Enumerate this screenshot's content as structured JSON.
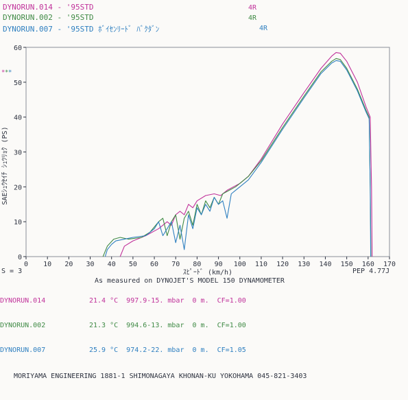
{
  "legend": [
    {
      "name": "DYNORUN.014 - '95STD",
      "gear": "4R",
      "color": "#c0319a"
    },
    {
      "name": "DYNORUN.002 - '95STD",
      "gear": "4R",
      "color": "#3f8a45"
    },
    {
      "name": "DYNORUN.007 - '95STD ﾎﾞｲｾﾝﾘｰﾄﾞ ﾊﾞｸﾀﾞﾝ",
      "gear": "4R",
      "color": "#2e7fc0"
    }
  ],
  "chart_data": {
    "type": "line",
    "xlabel": "ｽﾋﾟｰﾄﾞ (km/h)",
    "ylabel": "SAEｼｭｳｾｲﾁ ｼｭﾂﾘｮｸ (PS)",
    "xlim": [
      0,
      170
    ],
    "ylim": [
      0,
      60
    ],
    "xticks": [
      0,
      10,
      20,
      30,
      40,
      50,
      60,
      70,
      80,
      90,
      100,
      110,
      120,
      130,
      140,
      150,
      160,
      170
    ],
    "yticks": [
      0,
      10,
      20,
      30,
      40,
      50,
      60
    ],
    "grid": false,
    "legend_markers": [
      "*",
      "*",
      "*"
    ],
    "series": [
      {
        "name": "DYNORUN.014",
        "color": "#c0319a",
        "x": [
          44,
          46,
          50,
          56,
          62,
          66,
          68,
          70,
          72,
          74,
          76,
          78,
          80,
          84,
          88,
          91,
          94,
          97,
          100,
          104,
          110,
          120,
          130,
          138,
          143,
          145,
          147,
          150,
          155,
          159,
          161,
          161.6,
          161.9
        ],
        "y": [
          0,
          3,
          4.5,
          6,
          8,
          10,
          9,
          12,
          13,
          12,
          15,
          14,
          16,
          17.5,
          18,
          17.5,
          19,
          20,
          21,
          23,
          28,
          38,
          47,
          54,
          57.5,
          58.5,
          58.3,
          56,
          50,
          43,
          40,
          20,
          0
        ]
      },
      {
        "name": "DYNORUN.002",
        "color": "#3f8a45",
        "x": [
          36,
          38,
          41,
          44,
          48,
          54,
          58,
          62,
          64,
          66,
          68,
          70,
          72,
          74,
          76,
          78,
          80,
          82,
          84,
          86,
          88,
          90,
          92,
          95,
          98,
          100,
          104,
          110,
          120,
          130,
          138,
          143,
          145,
          147,
          150,
          155,
          159,
          160.5,
          161,
          161.3
        ],
        "y": [
          0,
          3,
          5,
          5.5,
          5,
          5.5,
          7,
          10,
          11,
          6,
          10,
          12,
          5,
          11,
          13,
          9,
          15,
          12,
          16,
          14,
          17,
          15,
          18,
          19,
          20,
          21,
          23,
          27.5,
          37,
          46,
          53,
          56,
          56.8,
          56.5,
          54,
          48,
          42,
          40,
          20,
          0
        ]
      },
      {
        "name": "DYNORUN.007",
        "color": "#2e7fc0",
        "x": [
          37,
          38,
          40,
          42,
          46,
          50,
          56,
          60,
          62,
          64,
          66,
          68,
          70,
          72,
          74,
          76,
          78,
          80,
          82,
          84,
          86,
          88,
          90,
          92,
          94,
          96,
          98,
          100,
          104,
          110,
          120,
          130,
          138,
          143,
          145,
          147,
          150,
          155,
          159,
          160.5,
          161,
          161.2
        ],
        "y": [
          0,
          2,
          3.5,
          4.5,
          5,
          5.5,
          6,
          8,
          10,
          6,
          8,
          10,
          4,
          9,
          2,
          12,
          8,
          14,
          12,
          15,
          13,
          17,
          15,
          16,
          11,
          18,
          19,
          20,
          22,
          27,
          36.5,
          45.5,
          52.5,
          55.5,
          56.2,
          56,
          53.5,
          47.5,
          41.5,
          39.5,
          20,
          0
        ]
      }
    ]
  },
  "footer_left": "S = 3",
  "footer_right": "PEP 4.77J",
  "caption": "As measured on DYNOJET'S MODEL 150 DYNAMOMETER",
  "runs": [
    {
      "name": "DYNORUN.014",
      "details": "21.4 °C  997.9-15. mbar  0 m.  CF=1.00",
      "color": "#c0319a"
    },
    {
      "name": "DYNORUN.002",
      "details": "21.3 °C  994.6-13. mbar  0 m.  CF=1.00",
      "color": "#3f8a45"
    },
    {
      "name": "DYNORUN.007",
      "details": "25.9 °C  974.2-22. mbar  0 m.  CF=1.05",
      "color": "#2e7fc0"
    }
  ],
  "address": "MORIYAMA ENGINEERING 1881-1 SHIMONAGAYA KHONAN-KU YOKOHAMA 045-821-3403"
}
